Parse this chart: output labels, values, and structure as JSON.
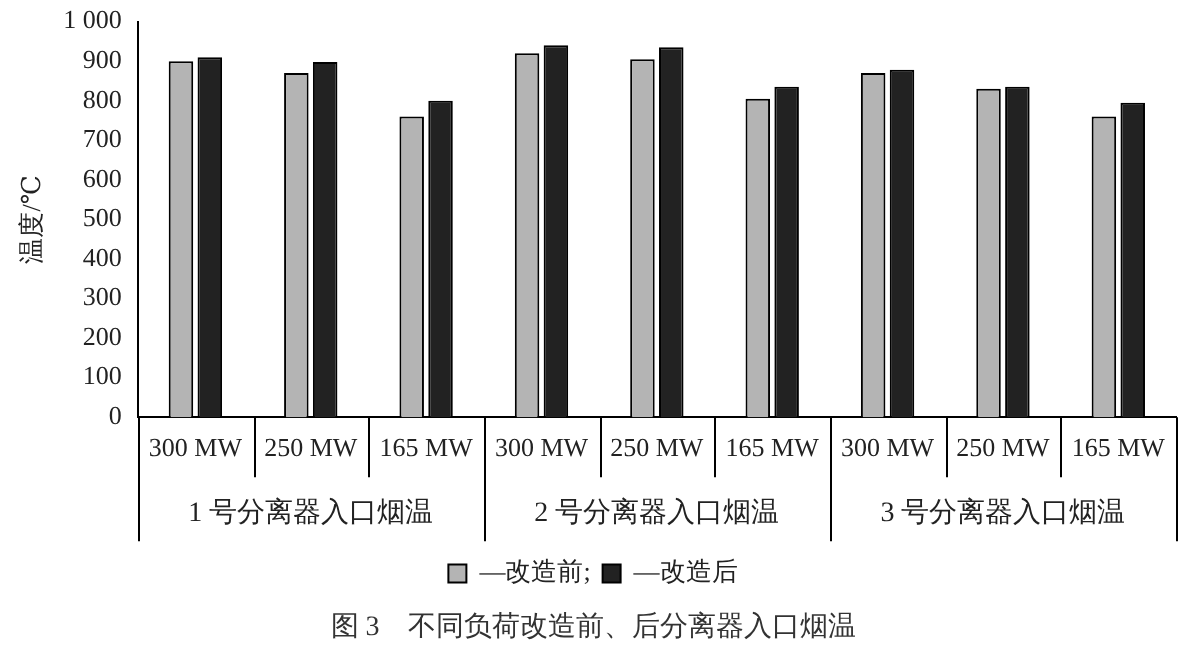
{
  "chart_data": {
    "type": "bar",
    "title": "图 3　不同负荷改造前、后分离器入口烟温",
    "ylabel": "温度/℃",
    "categories": [
      "300 MW",
      "250 MW",
      "165 MW",
      "300 MW",
      "250 MW",
      "165 MW",
      "300 MW",
      "250 MW",
      "165 MW"
    ],
    "annotations": [
      "1 号分离器入口烟温",
      "2 号分离器入口烟温",
      "3 号分离器入口烟温"
    ],
    "series": [
      {
        "name": "—改造前;",
        "color": "#b4b4b4",
        "values": [
          900,
          870,
          760,
          920,
          905,
          805,
          870,
          830,
          760
        ]
      },
      {
        "name": "—改造后",
        "color": "#222222",
        "values": [
          910,
          898,
          800,
          940,
          935,
          835,
          878,
          835,
          795
        ]
      }
    ],
    "ylim": [
      0,
      1000
    ],
    "yticks": [
      0,
      100,
      200,
      300,
      400,
      500,
      600,
      700,
      800,
      900,
      {
        "value": 1000,
        "label": "1 000"
      }
    ],
    "grid": false,
    "legend": "bottom"
  }
}
